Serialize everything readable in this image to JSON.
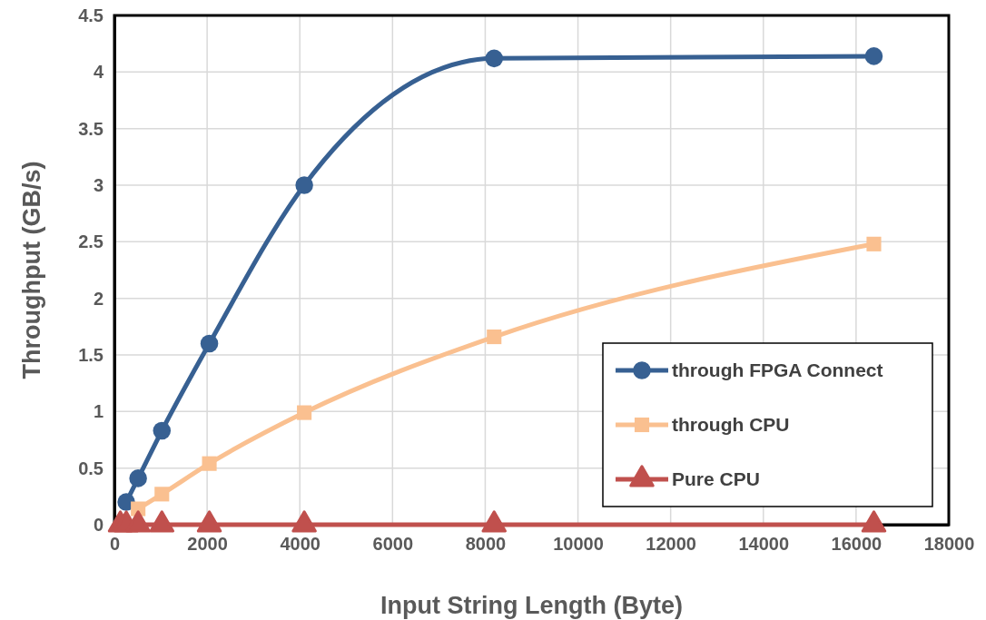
{
  "chart_data": {
    "type": "line",
    "xlabel": "Input String Length (Byte)",
    "ylabel": "Throughput (GB/s)",
    "x": [
      128,
      256,
      512,
      1024,
      2048,
      4096,
      8192,
      16384
    ],
    "series": [
      {
        "name": "through FPGA Connect",
        "color": "#376092",
        "marker": "circle",
        "values": [
          null,
          0.2,
          0.41,
          0.83,
          1.6,
          3.0,
          4.12,
          4.14
        ]
      },
      {
        "name": "through CPU",
        "color": "#fac090",
        "marker": "square",
        "values": [
          null,
          null,
          0.14,
          0.27,
          0.54,
          0.99,
          1.66,
          2.48
        ]
      },
      {
        "name": "Pure CPU",
        "color": "#c0504d",
        "marker": "triangle",
        "values": [
          0,
          0,
          0,
          0,
          0,
          0,
          0,
          0
        ]
      }
    ],
    "xlim": [
      0,
      18000
    ],
    "xticks": [
      0,
      2000,
      4000,
      6000,
      8000,
      10000,
      12000,
      14000,
      16000,
      18000
    ],
    "ylim": [
      0,
      4.5
    ],
    "yticks": [
      0,
      0.5,
      1,
      1.5,
      2,
      2.5,
      3,
      3.5,
      4,
      4.5
    ],
    "grid": true,
    "legend": "bottom right"
  }
}
